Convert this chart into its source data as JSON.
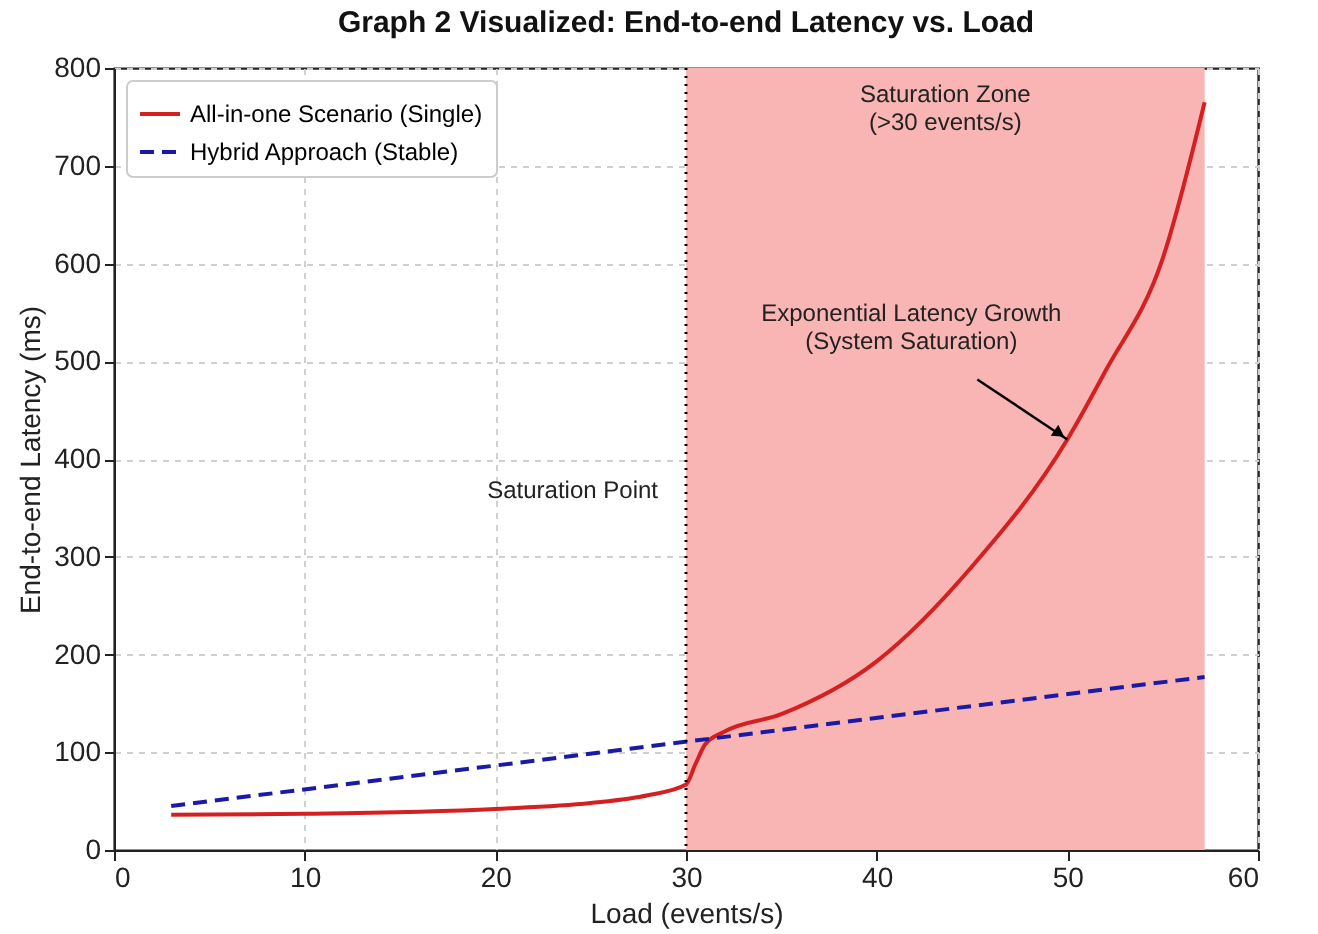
{
  "chart_data": {
    "type": "line",
    "title": "Graph 2 Visualized: End-to-end Latency vs. Load",
    "xlabel": "Load (events/s)",
    "ylabel": "End-to-end Latency (ms)",
    "xlim": [
      0,
      60
    ],
    "xticks": [
      0,
      10,
      20,
      30,
      40,
      50,
      60
    ],
    "ylim": [
      0,
      800
    ],
    "yticks": [
      0,
      100,
      200,
      300,
      400,
      500,
      600,
      700,
      800
    ],
    "grid": true,
    "legend": "top left",
    "series": [
      {
        "name": "All-in-one Scenario (Single)",
        "color": "#d42020",
        "line_style": "solid",
        "x": [
          3,
          10,
          20,
          25,
          28,
          30,
          30.5,
          31,
          32,
          35,
          40,
          45,
          50,
          52,
          55,
          57.2
        ],
        "values": [
          36,
          37,
          42,
          48,
          56,
          67,
          88,
          108,
          121,
          139,
          193,
          290,
          420,
          490,
          605,
          765
        ]
      },
      {
        "name": "Hybrid Approach (Stable)",
        "color": "#1a1aa6",
        "line_style": "dashed",
        "x": [
          3,
          57.2
        ],
        "values": [
          45,
          177
        ]
      }
    ],
    "ref_lines": [
      {
        "axis": "x",
        "value": 30,
        "label": "Saturation Point",
        "line_style": "dotted",
        "color": "#000000"
      }
    ],
    "bands": [
      {
        "axis": "x",
        "from": 30,
        "to": 57.2,
        "label": "Saturation Zone\n(>30 events/s)",
        "color": "#f9b4b4"
      }
    ],
    "annotations": [
      {
        "text": "Exponential Latency Growth\n(System Saturation)",
        "x": 50,
        "y": 420
      }
    ]
  }
}
